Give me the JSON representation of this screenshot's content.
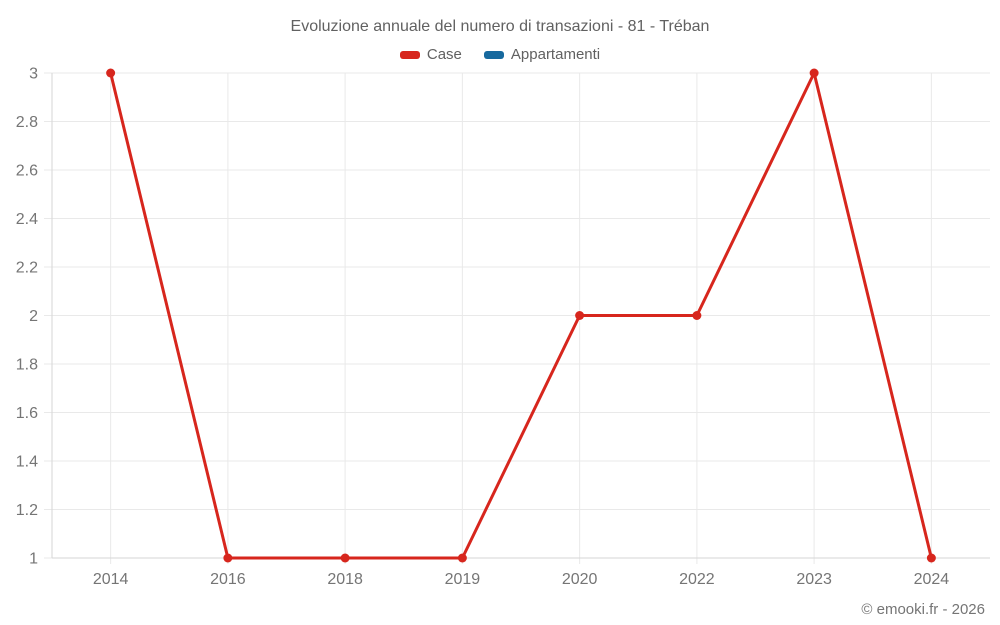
{
  "title": "Evoluzione annuale del numero di transazioni - 81 - Tréban",
  "watermark": "© emooki.fr - 2026",
  "legend": [
    {
      "label": "Case",
      "color": "#d7261d"
    },
    {
      "label": "Appartamenti",
      "color": "#17699e"
    }
  ],
  "chart_data": {
    "type": "line",
    "title": "Evoluzione annuale del numero di transazioni - 81 - Tréban",
    "categories": [
      "2014",
      "2016",
      "2018",
      "2019",
      "2020",
      "2022",
      "2023",
      "2024"
    ],
    "series": [
      {
        "name": "Case",
        "color": "#d7261d",
        "values": [
          3,
          1,
          1,
          1,
          2,
          2,
          3,
          1
        ]
      },
      {
        "name": "Appartamenti",
        "color": "#17699e",
        "values": []
      }
    ],
    "xlabel": "",
    "ylabel": "",
    "ylim": [
      1,
      3
    ],
    "ytick_step": 0.2,
    "ytick_labels": [
      "1",
      "1.2",
      "1.4",
      "1.6",
      "1.8",
      "2",
      "2.2",
      "2.4",
      "2.6",
      "2.8",
      "3"
    ],
    "grid": true,
    "legend_position": "top",
    "grid_color": "#e9e9e9",
    "axis_color": "#d6d6d6",
    "tick_label_color": "#757575"
  }
}
